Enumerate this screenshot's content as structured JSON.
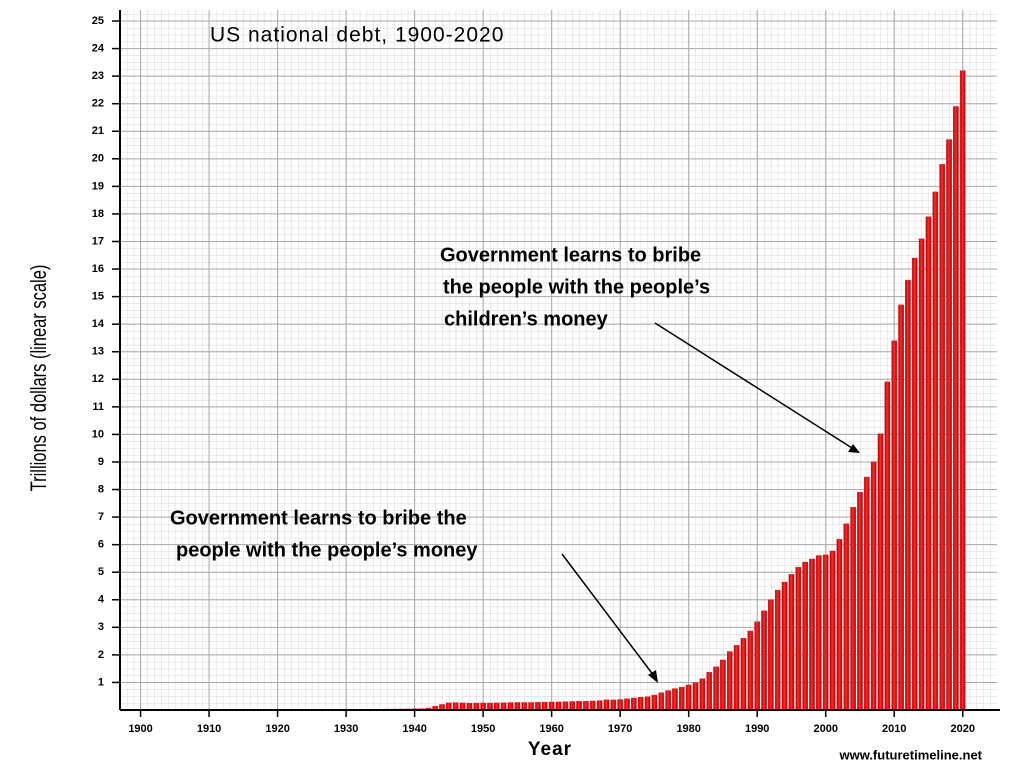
{
  "chart_data": {
    "type": "bar",
    "title": "US national debt, 1900-2020",
    "x_label": "Year",
    "y_label": "Trillions of dollars (linear scale)",
    "credit": "www.futuretimeline.net",
    "annotations": [
      {
        "lines": [
          "Government learns to bribe the",
          "people with the people’s money"
        ]
      },
      {
        "lines": [
          "Government learns to bribe",
          "the people with the people’s",
          "children’s money"
        ]
      }
    ],
    "color": "#e8141a",
    "grid": true,
    "x": [
      1900,
      1901,
      1902,
      1903,
      1904,
      1905,
      1906,
      1907,
      1908,
      1909,
      1910,
      1911,
      1912,
      1913,
      1914,
      1915,
      1916,
      1917,
      1918,
      1919,
      1920,
      1921,
      1922,
      1923,
      1924,
      1925,
      1926,
      1927,
      1928,
      1929,
      1930,
      1931,
      1932,
      1933,
      1934,
      1935,
      1936,
      1937,
      1938,
      1939,
      1940,
      1941,
      1942,
      1943,
      1944,
      1945,
      1946,
      1947,
      1948,
      1949,
      1950,
      1951,
      1952,
      1953,
      1954,
      1955,
      1956,
      1957,
      1958,
      1959,
      1960,
      1961,
      1962,
      1963,
      1964,
      1965,
      1966,
      1967,
      1968,
      1969,
      1970,
      1971,
      1972,
      1973,
      1974,
      1975,
      1976,
      1977,
      1978,
      1979,
      1980,
      1981,
      1982,
      1983,
      1984,
      1985,
      1986,
      1987,
      1988,
      1989,
      1990,
      1991,
      1992,
      1993,
      1994,
      1995,
      1996,
      1997,
      1998,
      1999,
      2000,
      2001,
      2002,
      2003,
      2004,
      2005,
      2006,
      2007,
      2008,
      2009,
      2010,
      2011,
      2012,
      2013,
      2014,
      2015,
      2016,
      2017,
      2018,
      2019,
      2020
    ],
    "values": [
      0.001,
      0.001,
      0.001,
      0.001,
      0.001,
      0.001,
      0.001,
      0.001,
      0.001,
      0.001,
      0.001,
      0.001,
      0.001,
      0.001,
      0.001,
      0.001,
      0.001,
      0.003,
      0.012,
      0.025,
      0.024,
      0.024,
      0.023,
      0.022,
      0.021,
      0.02,
      0.02,
      0.019,
      0.018,
      0.017,
      0.016,
      0.017,
      0.019,
      0.023,
      0.027,
      0.029,
      0.034,
      0.036,
      0.037,
      0.04,
      0.043,
      0.049,
      0.072,
      0.137,
      0.201,
      0.259,
      0.269,
      0.258,
      0.252,
      0.253,
      0.257,
      0.255,
      0.259,
      0.266,
      0.271,
      0.274,
      0.273,
      0.272,
      0.28,
      0.287,
      0.291,
      0.293,
      0.303,
      0.31,
      0.316,
      0.322,
      0.328,
      0.341,
      0.37,
      0.367,
      0.381,
      0.408,
      0.436,
      0.466,
      0.484,
      0.542,
      0.629,
      0.706,
      0.777,
      0.829,
      0.909,
      0.995,
      1.137,
      1.372,
      1.565,
      1.817,
      2.121,
      2.346,
      2.601,
      2.868,
      3.206,
      3.598,
      4.002,
      4.351,
      4.643,
      4.921,
      5.181,
      5.369,
      5.478,
      5.606,
      5.629,
      5.77,
      6.198,
      6.76,
      7.355,
      7.905,
      8.451,
      9.008,
      10.025,
      11.91,
      13.4,
      14.7,
      15.6,
      16.4,
      17.1,
      17.9,
      18.8,
      19.8,
      20.7,
      21.9,
      23.2
    ],
    "xlim": [
      1897,
      2025
    ],
    "xticks": [
      1900,
      1910,
      1920,
      1930,
      1940,
      1950,
      1960,
      1970,
      1980,
      1990,
      2000,
      2010,
      2020
    ],
    "ylim": [
      0,
      25.4
    ],
    "yticks": [
      1,
      2,
      3,
      4,
      5,
      6,
      7,
      8,
      9,
      10,
      11,
      12,
      13,
      14,
      15,
      16,
      17,
      18,
      19,
      20,
      21,
      22,
      23,
      24,
      25
    ]
  }
}
